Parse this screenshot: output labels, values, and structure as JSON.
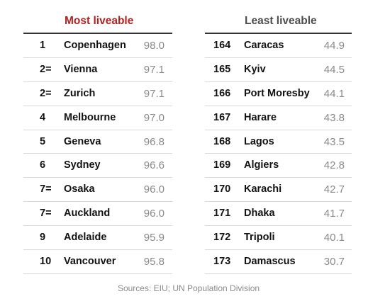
{
  "colors": {
    "most_title": "#b22222",
    "least_title": "#4d4d4d",
    "score": "#8a8a8a",
    "source": "#8a8a8a"
  },
  "most": {
    "title": "Most liveable",
    "rows": [
      {
        "rank": "1",
        "city": "Copenhagen",
        "score": "98.0"
      },
      {
        "rank": "2=",
        "city": "Vienna",
        "score": "97.1"
      },
      {
        "rank": "2=",
        "city": "Zurich",
        "score": "97.1"
      },
      {
        "rank": "4",
        "city": "Melbourne",
        "score": "97.0"
      },
      {
        "rank": "5",
        "city": "Geneva",
        "score": "96.8"
      },
      {
        "rank": "6",
        "city": "Sydney",
        "score": "96.6"
      },
      {
        "rank": "7=",
        "city": "Osaka",
        "score": "96.0"
      },
      {
        "rank": "7=",
        "city": "Auckland",
        "score": "96.0"
      },
      {
        "rank": "9",
        "city": "Adelaide",
        "score": "95.9"
      },
      {
        "rank": "10",
        "city": "Vancouver",
        "score": "95.8"
      }
    ]
  },
  "least": {
    "title": "Least liveable",
    "rows": [
      {
        "rank": "164",
        "city": "Caracas",
        "score": "44.9"
      },
      {
        "rank": "165",
        "city": "Kyiv",
        "score": "44.5"
      },
      {
        "rank": "166",
        "city": "Port Moresby",
        "score": "44.1"
      },
      {
        "rank": "167",
        "city": "Harare",
        "score": "43.8"
      },
      {
        "rank": "168",
        "city": "Lagos",
        "score": "43.5"
      },
      {
        "rank": "169",
        "city": "Algiers",
        "score": "42.8"
      },
      {
        "rank": "170",
        "city": "Karachi",
        "score": "42.7"
      },
      {
        "rank": "171",
        "city": "Dhaka",
        "score": "41.7"
      },
      {
        "rank": "172",
        "city": "Tripoli",
        "score": "40.1"
      },
      {
        "rank": "173",
        "city": "Damascus",
        "score": "30.7"
      }
    ]
  },
  "source": "Sources: EIU; UN Population Division"
}
